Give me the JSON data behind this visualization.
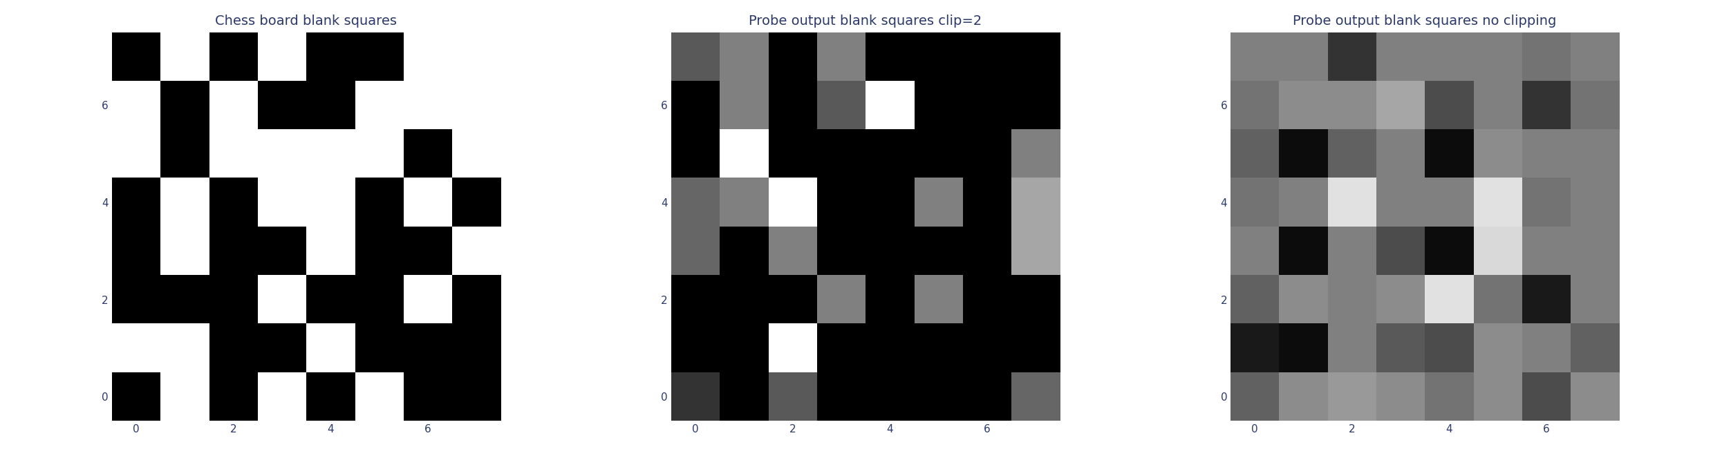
{
  "titles": [
    "Chess board blank squares",
    "Probe output blank squares clip=2",
    "Probe output blank squares no clipping"
  ],
  "chess_display": [
    [
      0,
      1,
      0,
      1,
      0,
      0,
      1,
      1
    ],
    [
      1,
      0,
      1,
      0,
      0,
      1,
      1,
      1
    ],
    [
      1,
      0,
      1,
      1,
      1,
      1,
      0,
      1
    ],
    [
      0,
      1,
      0,
      1,
      1,
      0,
      1,
      0
    ],
    [
      0,
      1,
      0,
      0,
      1,
      0,
      0,
      1
    ],
    [
      0,
      0,
      0,
      1,
      0,
      0,
      1,
      0
    ],
    [
      1,
      1,
      0,
      0,
      1,
      0,
      0,
      0
    ],
    [
      0,
      1,
      0,
      1,
      0,
      1,
      0,
      0
    ]
  ],
  "probe_clip_display": [
    [
      0.35,
      0.5,
      0.0,
      0.5,
      0.0,
      0.0,
      0.0,
      0.0
    ],
    [
      0.0,
      0.5,
      0.0,
      0.35,
      1.0,
      0.0,
      0.0,
      0.0
    ],
    [
      0.0,
      1.0,
      0.0,
      0.0,
      0.0,
      0.0,
      0.0,
      0.5
    ],
    [
      0.4,
      0.5,
      1.0,
      0.0,
      0.0,
      0.5,
      0.0,
      0.65
    ],
    [
      0.4,
      0.0,
      0.5,
      0.0,
      0.0,
      0.0,
      0.0,
      0.65
    ],
    [
      0.0,
      0.0,
      0.0,
      0.5,
      0.0,
      0.5,
      0.0,
      0.0
    ],
    [
      0.0,
      0.0,
      1.0,
      0.0,
      0.0,
      0.0,
      0.0,
      0.0
    ],
    [
      0.2,
      0.0,
      0.35,
      0.0,
      0.0,
      0.0,
      0.0,
      0.4
    ]
  ],
  "probe_noclip_display": [
    [
      0.5,
      0.5,
      0.2,
      0.5,
      0.5,
      0.5,
      0.45,
      0.5
    ],
    [
      0.45,
      0.55,
      0.55,
      0.65,
      0.3,
      0.5,
      0.2,
      0.45
    ],
    [
      0.38,
      0.05,
      0.38,
      0.5,
      0.05,
      0.55,
      0.5,
      0.5
    ],
    [
      0.45,
      0.5,
      0.88,
      0.5,
      0.5,
      0.88,
      0.45,
      0.5
    ],
    [
      0.5,
      0.05,
      0.5,
      0.3,
      0.05,
      0.85,
      0.5,
      0.5
    ],
    [
      0.38,
      0.55,
      0.5,
      0.55,
      0.88,
      0.45,
      0.1,
      0.5
    ],
    [
      0.1,
      0.05,
      0.5,
      0.35,
      0.3,
      0.55,
      0.5,
      0.38
    ],
    [
      0.38,
      0.55,
      0.6,
      0.55,
      0.45,
      0.55,
      0.3,
      0.55
    ]
  ],
  "text_color": "#2b3a6b",
  "title_fontsize": 14,
  "tick_fontsize": 11,
  "figsize": [
    25.04,
    6.5
  ],
  "dpi": 100
}
